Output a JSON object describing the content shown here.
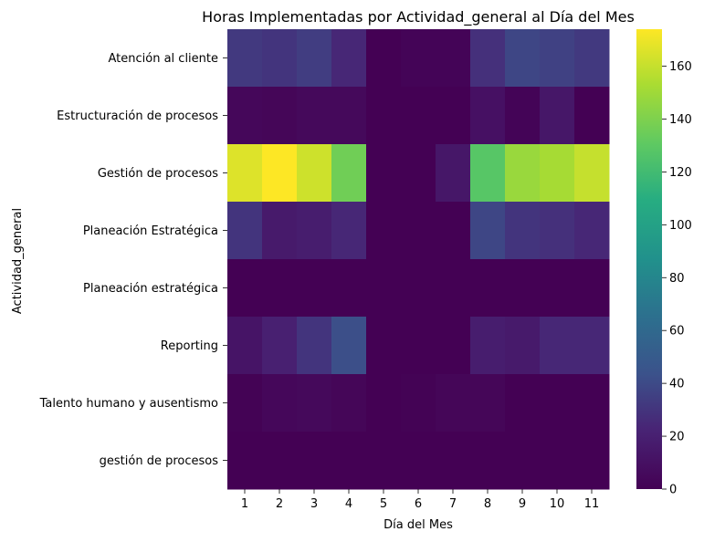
{
  "chart_data": {
    "type": "heatmap",
    "title": "Horas Implementadas por Actividad_general al Día del Mes",
    "xlabel": "Día del Mes",
    "ylabel": "Actividad_general",
    "x": [
      "1",
      "2",
      "3",
      "4",
      "5",
      "6",
      "7",
      "8",
      "9",
      "10",
      "11"
    ],
    "y": [
      "Atención al cliente",
      "Estructuración de procesos",
      "Gestión de procesos",
      "Planeación Estratégica",
      "Planeación estratégica",
      "Reporting",
      "Talento humano y ausentismo",
      "gestión de procesos"
    ],
    "values": [
      [
        32,
        30,
        34,
        24,
        0,
        2,
        2,
        28,
        38,
        36,
        32
      ],
      [
        4,
        3,
        5,
        5,
        0,
        0,
        0,
        10,
        2,
        14,
        0
      ],
      [
        166,
        174,
        162,
        136,
        0,
        0,
        14,
        128,
        148,
        152,
        160
      ],
      [
        30,
        16,
        18,
        24,
        0,
        0,
        0,
        38,
        30,
        28,
        24
      ],
      [
        0,
        0,
        0,
        0,
        0,
        0,
        0,
        0,
        0,
        0,
        0
      ],
      [
        12,
        20,
        30,
        42,
        0,
        0,
        0,
        18,
        16,
        24,
        24
      ],
      [
        1,
        4,
        5,
        3,
        0,
        1,
        3,
        3,
        0,
        0,
        0
      ],
      [
        0,
        0,
        0,
        0,
        0,
        0,
        0,
        0,
        0,
        0,
        0
      ]
    ],
    "colorscale": "viridis",
    "vmin": 0,
    "vmax": 174,
    "colorbar_ticks": [
      0,
      20,
      40,
      60,
      80,
      100,
      120,
      140,
      160
    ],
    "colorbar_tick_labels": [
      "0",
      "20",
      "40",
      "60",
      "80",
      "100",
      "120",
      "140",
      "160"
    ]
  }
}
